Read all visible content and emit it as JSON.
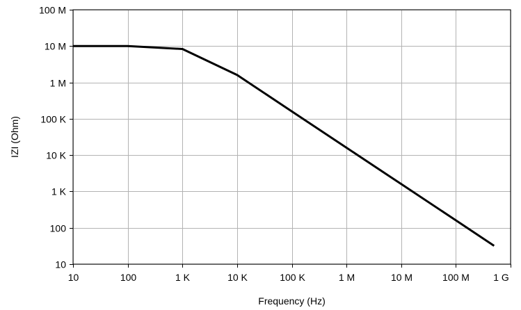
{
  "chart_data": {
    "type": "line",
    "title": "",
    "xlabel": "Frequency (Hz)",
    "ylabel": "IZI (Ohm)",
    "x_scale": "log",
    "y_scale": "log",
    "xlim": [
      10,
      1000000000
    ],
    "ylim": [
      10,
      100000000
    ],
    "grid": true,
    "legend": "none",
    "x_ticks": [
      {
        "value": 10,
        "label": "10"
      },
      {
        "value": 100,
        "label": "100"
      },
      {
        "value": 1000,
        "label": "1 K"
      },
      {
        "value": 10000,
        "label": "10 K"
      },
      {
        "value": 100000,
        "label": "100 K"
      },
      {
        "value": 1000000,
        "label": "1 M"
      },
      {
        "value": 10000000,
        "label": "10 M"
      },
      {
        "value": 100000000,
        "label": "100 M"
      },
      {
        "value": 1000000000,
        "label": "1 G"
      }
    ],
    "y_ticks": [
      {
        "value": 10,
        "label": "10"
      },
      {
        "value": 100,
        "label": "100"
      },
      {
        "value": 1000,
        "label": "1 K"
      },
      {
        "value": 10000,
        "label": "10 K"
      },
      {
        "value": 100000,
        "label": "100 K"
      },
      {
        "value": 1000000,
        "label": "1 M"
      },
      {
        "value": 10000000,
        "label": "10 M"
      },
      {
        "value": 100000000,
        "label": "100 M"
      }
    ],
    "series": [
      {
        "color": "#000000",
        "points": [
          {
            "x": 10,
            "y": 10000000
          },
          {
            "x": 100,
            "y": 10000000
          },
          {
            "x": 1000,
            "y": 8300000
          },
          {
            "x": 10000,
            "y": 1600000
          },
          {
            "x": 100000,
            "y": 160000
          },
          {
            "x": 1000000,
            "y": 16000
          },
          {
            "x": 10000000,
            "y": 1600
          },
          {
            "x": 100000000,
            "y": 160
          },
          {
            "x": 500000000,
            "y": 32
          }
        ]
      }
    ]
  }
}
